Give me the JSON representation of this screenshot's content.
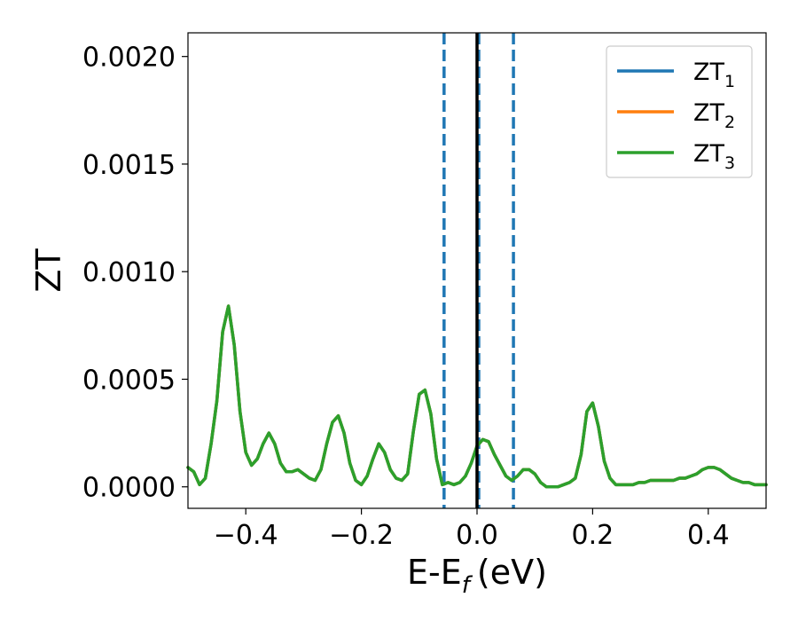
{
  "chart_data": {
    "type": "line",
    "xlabel": "E-E",
    "xlabel_sub": "f",
    "xlabel_unit": "(eV)",
    "ylabel": "ZT",
    "xlim": [
      -0.5,
      0.5
    ],
    "ylim": [
      -0.0001,
      0.00211
    ],
    "xticks": [
      -0.4,
      -0.2,
      0.0,
      0.2,
      0.4
    ],
    "xtick_labels": [
      "−0.4",
      "−0.2",
      "0.0",
      "0.2",
      "0.4"
    ],
    "yticks": [
      0.0,
      0.0005,
      0.001,
      0.0015,
      0.002
    ],
    "ytick_labels": [
      "0.0000",
      "0.0005",
      "0.0010",
      "0.0015",
      "0.0020"
    ],
    "grid": false,
    "legend_position": "top-right",
    "vlines": [
      {
        "x": -0.057,
        "style": "dashed",
        "color": "#1f77b4"
      },
      {
        "x": 0.003,
        "style": "dashed",
        "color": "#1f77b4"
      },
      {
        "x": 0.063,
        "style": "dashed",
        "color": "#1f77b4"
      },
      {
        "x": 0.0,
        "style": "solid",
        "color": "#000000"
      }
    ],
    "x": [
      -0.5,
      -0.49,
      -0.48,
      -0.47,
      -0.46,
      -0.45,
      -0.44,
      -0.43,
      -0.42,
      -0.41,
      -0.4,
      -0.39,
      -0.38,
      -0.37,
      -0.36,
      -0.35,
      -0.34,
      -0.33,
      -0.32,
      -0.31,
      -0.3,
      -0.29,
      -0.28,
      -0.27,
      -0.26,
      -0.25,
      -0.24,
      -0.23,
      -0.22,
      -0.21,
      -0.2,
      -0.19,
      -0.18,
      -0.17,
      -0.16,
      -0.15,
      -0.14,
      -0.13,
      -0.12,
      -0.11,
      -0.1,
      -0.09,
      -0.08,
      -0.07,
      -0.06,
      -0.05,
      -0.04,
      -0.03,
      -0.02,
      -0.01,
      0.0,
      0.01,
      0.02,
      0.03,
      0.04,
      0.05,
      0.06,
      0.07,
      0.08,
      0.09,
      0.1,
      0.11,
      0.12,
      0.13,
      0.14,
      0.15,
      0.16,
      0.17,
      0.18,
      0.19,
      0.2,
      0.21,
      0.22,
      0.23,
      0.24,
      0.25,
      0.26,
      0.27,
      0.28,
      0.29,
      0.3,
      0.31,
      0.32,
      0.33,
      0.34,
      0.35,
      0.36,
      0.37,
      0.38,
      0.39,
      0.4,
      0.41,
      0.42,
      0.43,
      0.44,
      0.45,
      0.46,
      0.47,
      0.48,
      0.49,
      0.5
    ],
    "series": [
      {
        "name": "ZT",
        "name_sub": "1",
        "color": "#1f77b4",
        "values": [
          9e-05,
          7e-05,
          1e-05,
          4e-05,
          0.0002,
          0.0004,
          0.00072,
          0.00084,
          0.00066,
          0.00035,
          0.00016,
          0.0001,
          0.00013,
          0.0002,
          0.00025,
          0.0002,
          0.00011,
          7e-05,
          7e-05,
          8e-05,
          6e-05,
          4e-05,
          3e-05,
          8e-05,
          0.0002,
          0.0003,
          0.00033,
          0.00025,
          0.00011,
          3e-05,
          1e-05,
          5e-05,
          0.00013,
          0.0002,
          0.00016,
          8e-05,
          4e-05,
          3e-05,
          6e-05,
          0.00026,
          0.00043,
          0.00045,
          0.00034,
          0.00013,
          1e-05,
          2e-05,
          1e-05,
          2e-05,
          5e-05,
          0.00011,
          0.00019,
          0.00022,
          0.00021,
          0.00015,
          0.0001,
          5e-05,
          3e-05,
          5e-05,
          8e-05,
          8e-05,
          6e-05,
          2e-05,
          0.0,
          0.0,
          0.0,
          1e-05,
          2e-05,
          4e-05,
          0.00015,
          0.00035,
          0.00039,
          0.00028,
          0.00012,
          4e-05,
          1e-05,
          1e-05,
          1e-05,
          1e-05,
          2e-05,
          2e-05,
          3e-05,
          3e-05,
          3e-05,
          3e-05,
          3e-05,
          4e-05,
          4e-05,
          5e-05,
          6e-05,
          8e-05,
          9e-05,
          9e-05,
          8e-05,
          6e-05,
          4e-05,
          3e-05,
          2e-05,
          2e-05,
          1e-05,
          1e-05,
          1e-05
        ]
      },
      {
        "name": "ZT",
        "name_sub": "2",
        "color": "#ff7f0e",
        "values": [
          9e-05,
          7e-05,
          1e-05,
          4e-05,
          0.0002,
          0.0004,
          0.00072,
          0.00084,
          0.00066,
          0.00035,
          0.00016,
          0.0001,
          0.00013,
          0.0002,
          0.00025,
          0.0002,
          0.00011,
          7e-05,
          7e-05,
          8e-05,
          6e-05,
          4e-05,
          3e-05,
          8e-05,
          0.0002,
          0.0003,
          0.00033,
          0.00025,
          0.00011,
          3e-05,
          1e-05,
          5e-05,
          0.00013,
          0.0002,
          0.00016,
          8e-05,
          4e-05,
          3e-05,
          6e-05,
          0.00026,
          0.00043,
          0.00045,
          0.00034,
          0.00013,
          1e-05,
          2e-05,
          1e-05,
          2e-05,
          5e-05,
          0.00011,
          0.00019,
          0.00022,
          0.00021,
          0.00015,
          0.0001,
          5e-05,
          3e-05,
          5e-05,
          8e-05,
          8e-05,
          6e-05,
          2e-05,
          0.0,
          0.0,
          0.0,
          1e-05,
          2e-05,
          4e-05,
          0.00015,
          0.00035,
          0.00039,
          0.00028,
          0.00012,
          4e-05,
          1e-05,
          1e-05,
          1e-05,
          1e-05,
          2e-05,
          2e-05,
          3e-05,
          3e-05,
          3e-05,
          3e-05,
          3e-05,
          4e-05,
          4e-05,
          5e-05,
          6e-05,
          8e-05,
          9e-05,
          9e-05,
          8e-05,
          6e-05,
          4e-05,
          3e-05,
          2e-05,
          2e-05,
          1e-05,
          1e-05,
          1e-05
        ]
      },
      {
        "name": "ZT",
        "name_sub": "3",
        "color": "#2ca02c",
        "values": [
          9e-05,
          7e-05,
          1e-05,
          4e-05,
          0.0002,
          0.0004,
          0.00072,
          0.00084,
          0.00066,
          0.00035,
          0.00016,
          0.0001,
          0.00013,
          0.0002,
          0.00025,
          0.0002,
          0.00011,
          7e-05,
          7e-05,
          8e-05,
          6e-05,
          4e-05,
          3e-05,
          8e-05,
          0.0002,
          0.0003,
          0.00033,
          0.00025,
          0.00011,
          3e-05,
          1e-05,
          5e-05,
          0.00013,
          0.0002,
          0.00016,
          8e-05,
          4e-05,
          3e-05,
          6e-05,
          0.00026,
          0.00043,
          0.00045,
          0.00034,
          0.00013,
          1e-05,
          2e-05,
          1e-05,
          2e-05,
          5e-05,
          0.00011,
          0.00019,
          0.00022,
          0.00021,
          0.00015,
          0.0001,
          5e-05,
          3e-05,
          5e-05,
          8e-05,
          8e-05,
          6e-05,
          2e-05,
          0.0,
          0.0,
          0.0,
          1e-05,
          2e-05,
          4e-05,
          0.00015,
          0.00035,
          0.00039,
          0.00028,
          0.00012,
          4e-05,
          1e-05,
          1e-05,
          1e-05,
          1e-05,
          2e-05,
          2e-05,
          3e-05,
          3e-05,
          3e-05,
          3e-05,
          3e-05,
          4e-05,
          4e-05,
          5e-05,
          6e-05,
          8e-05,
          9e-05,
          9e-05,
          8e-05,
          6e-05,
          4e-05,
          3e-05,
          2e-05,
          2e-05,
          1e-05,
          1e-05,
          1e-05
        ]
      }
    ]
  }
}
